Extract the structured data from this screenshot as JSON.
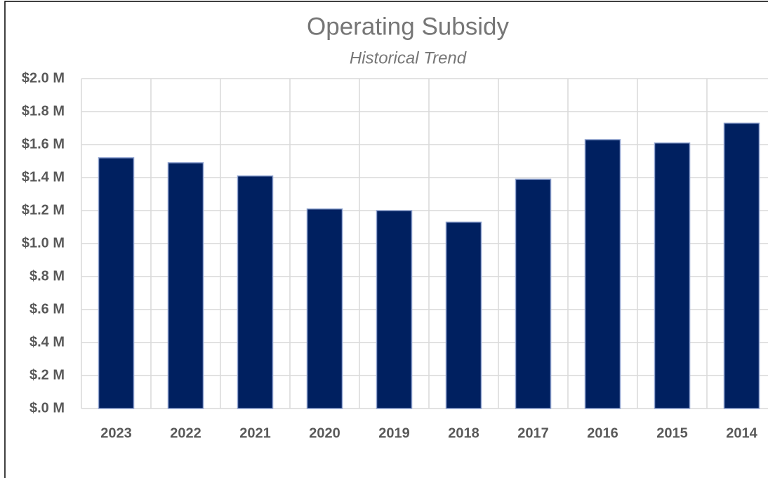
{
  "chart_data": {
    "type": "bar",
    "title": "Operating Subsidy",
    "subtitle": "Historical Trend",
    "categories": [
      "2023",
      "2022",
      "2021",
      "2020",
      "2019",
      "2018",
      "2017",
      "2016",
      "2015",
      "2014"
    ],
    "values": [
      1.52,
      1.49,
      1.41,
      1.21,
      1.2,
      1.13,
      1.39,
      1.63,
      1.61,
      1.73
    ],
    "color": "#002060",
    "ylim": [
      0,
      2
    ],
    "yticks": [
      {
        "value": 0,
        "label": "$.0 M"
      },
      {
        "value": 0.2,
        "label": "$.2 M"
      },
      {
        "value": 0.4,
        "label": "$.4 M"
      },
      {
        "value": 0.6,
        "label": "$.6 M"
      },
      {
        "value": 0.8,
        "label": "$.8 M"
      },
      {
        "value": 1.0,
        "label": "$1.0 M"
      },
      {
        "value": 1.2,
        "label": "$1.2 M"
      },
      {
        "value": 1.4,
        "label": "$1.4 M"
      },
      {
        "value": 1.6,
        "label": "$1.6 M"
      },
      {
        "value": 1.8,
        "label": "$1.8 M"
      },
      {
        "value": 2.0,
        "label": "$2.0 M"
      }
    ],
    "grid": true
  }
}
